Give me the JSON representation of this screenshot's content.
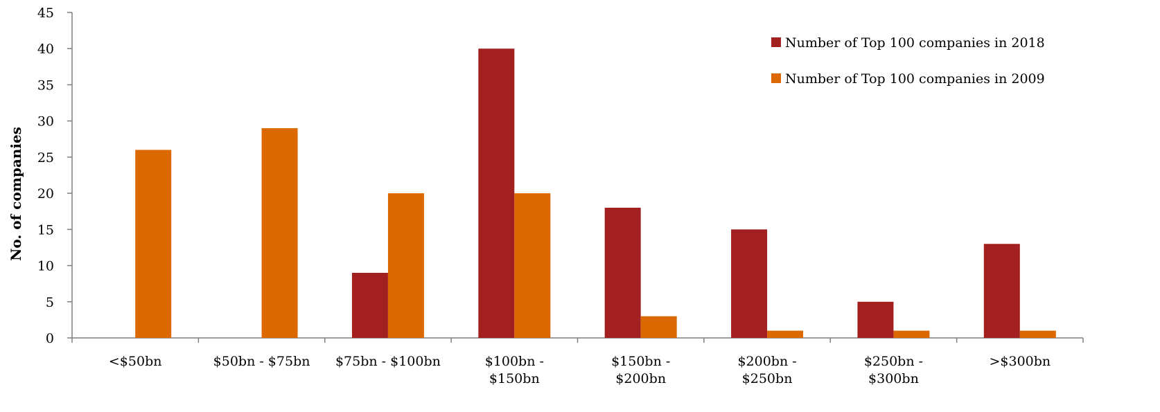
{
  "chart_data": {
    "type": "bar",
    "title": "",
    "xlabel": "",
    "ylabel": "No. of companies",
    "ylim": [
      0,
      45
    ],
    "yticks": [
      "0",
      "5",
      "10",
      "15",
      "20",
      "25",
      "30",
      "35",
      "40",
      "45"
    ],
    "grid": false,
    "legend_position": "top-right",
    "categories": [
      [
        "<$50bn"
      ],
      [
        "$50bn - $75bn"
      ],
      [
        "$75bn - $100bn"
      ],
      [
        "$100bn -",
        "$150bn"
      ],
      [
        "$150bn -",
        "$200bn"
      ],
      [
        "$200bn -",
        "$250bn"
      ],
      [
        "$250bn -",
        "$300bn"
      ],
      [
        ">$300bn"
      ]
    ],
    "series": [
      {
        "name": "Number of Top 100 companies in 2018",
        "color": "#a32020",
        "values": [
          0,
          0,
          9,
          40,
          18,
          15,
          5,
          13
        ]
      },
      {
        "name": "Number of Top 100 companies in 2009",
        "color": "#dc6900",
        "values": [
          26,
          29,
          20,
          20,
          3,
          1,
          1,
          1
        ]
      }
    ]
  }
}
